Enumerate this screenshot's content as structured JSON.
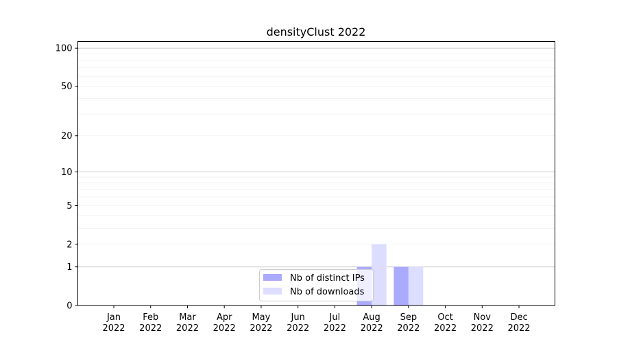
{
  "chart_data": {
    "type": "bar",
    "title": "densityClust 2022",
    "xlabel": "",
    "ylabel": "",
    "categories": [
      "Jan\n2022",
      "Feb\n2022",
      "Mar\n2022",
      "Apr\n2022",
      "May\n2022",
      "Jun\n2022",
      "Jul\n2022",
      "Aug\n2022",
      "Sep\n2022",
      "Oct\n2022",
      "Nov\n2022",
      "Dec\n2022"
    ],
    "series": [
      {
        "name": "Nb of distinct IPs",
        "color": "#aaaaff",
        "values": [
          0,
          0,
          0,
          0,
          0,
          0,
          0,
          1,
          1,
          0,
          0,
          0
        ]
      },
      {
        "name": "Nb of downloads",
        "color": "#ddddff",
        "values": [
          0,
          0,
          0,
          0,
          0,
          0,
          0,
          2,
          1,
          0,
          0,
          0
        ]
      }
    ],
    "yscale": "log(1+y)",
    "ylim": [
      0,
      113
    ],
    "yticks": [
      0,
      1,
      2,
      5,
      10,
      20,
      50,
      100
    ],
    "grid": true,
    "legend": "lower-center"
  }
}
